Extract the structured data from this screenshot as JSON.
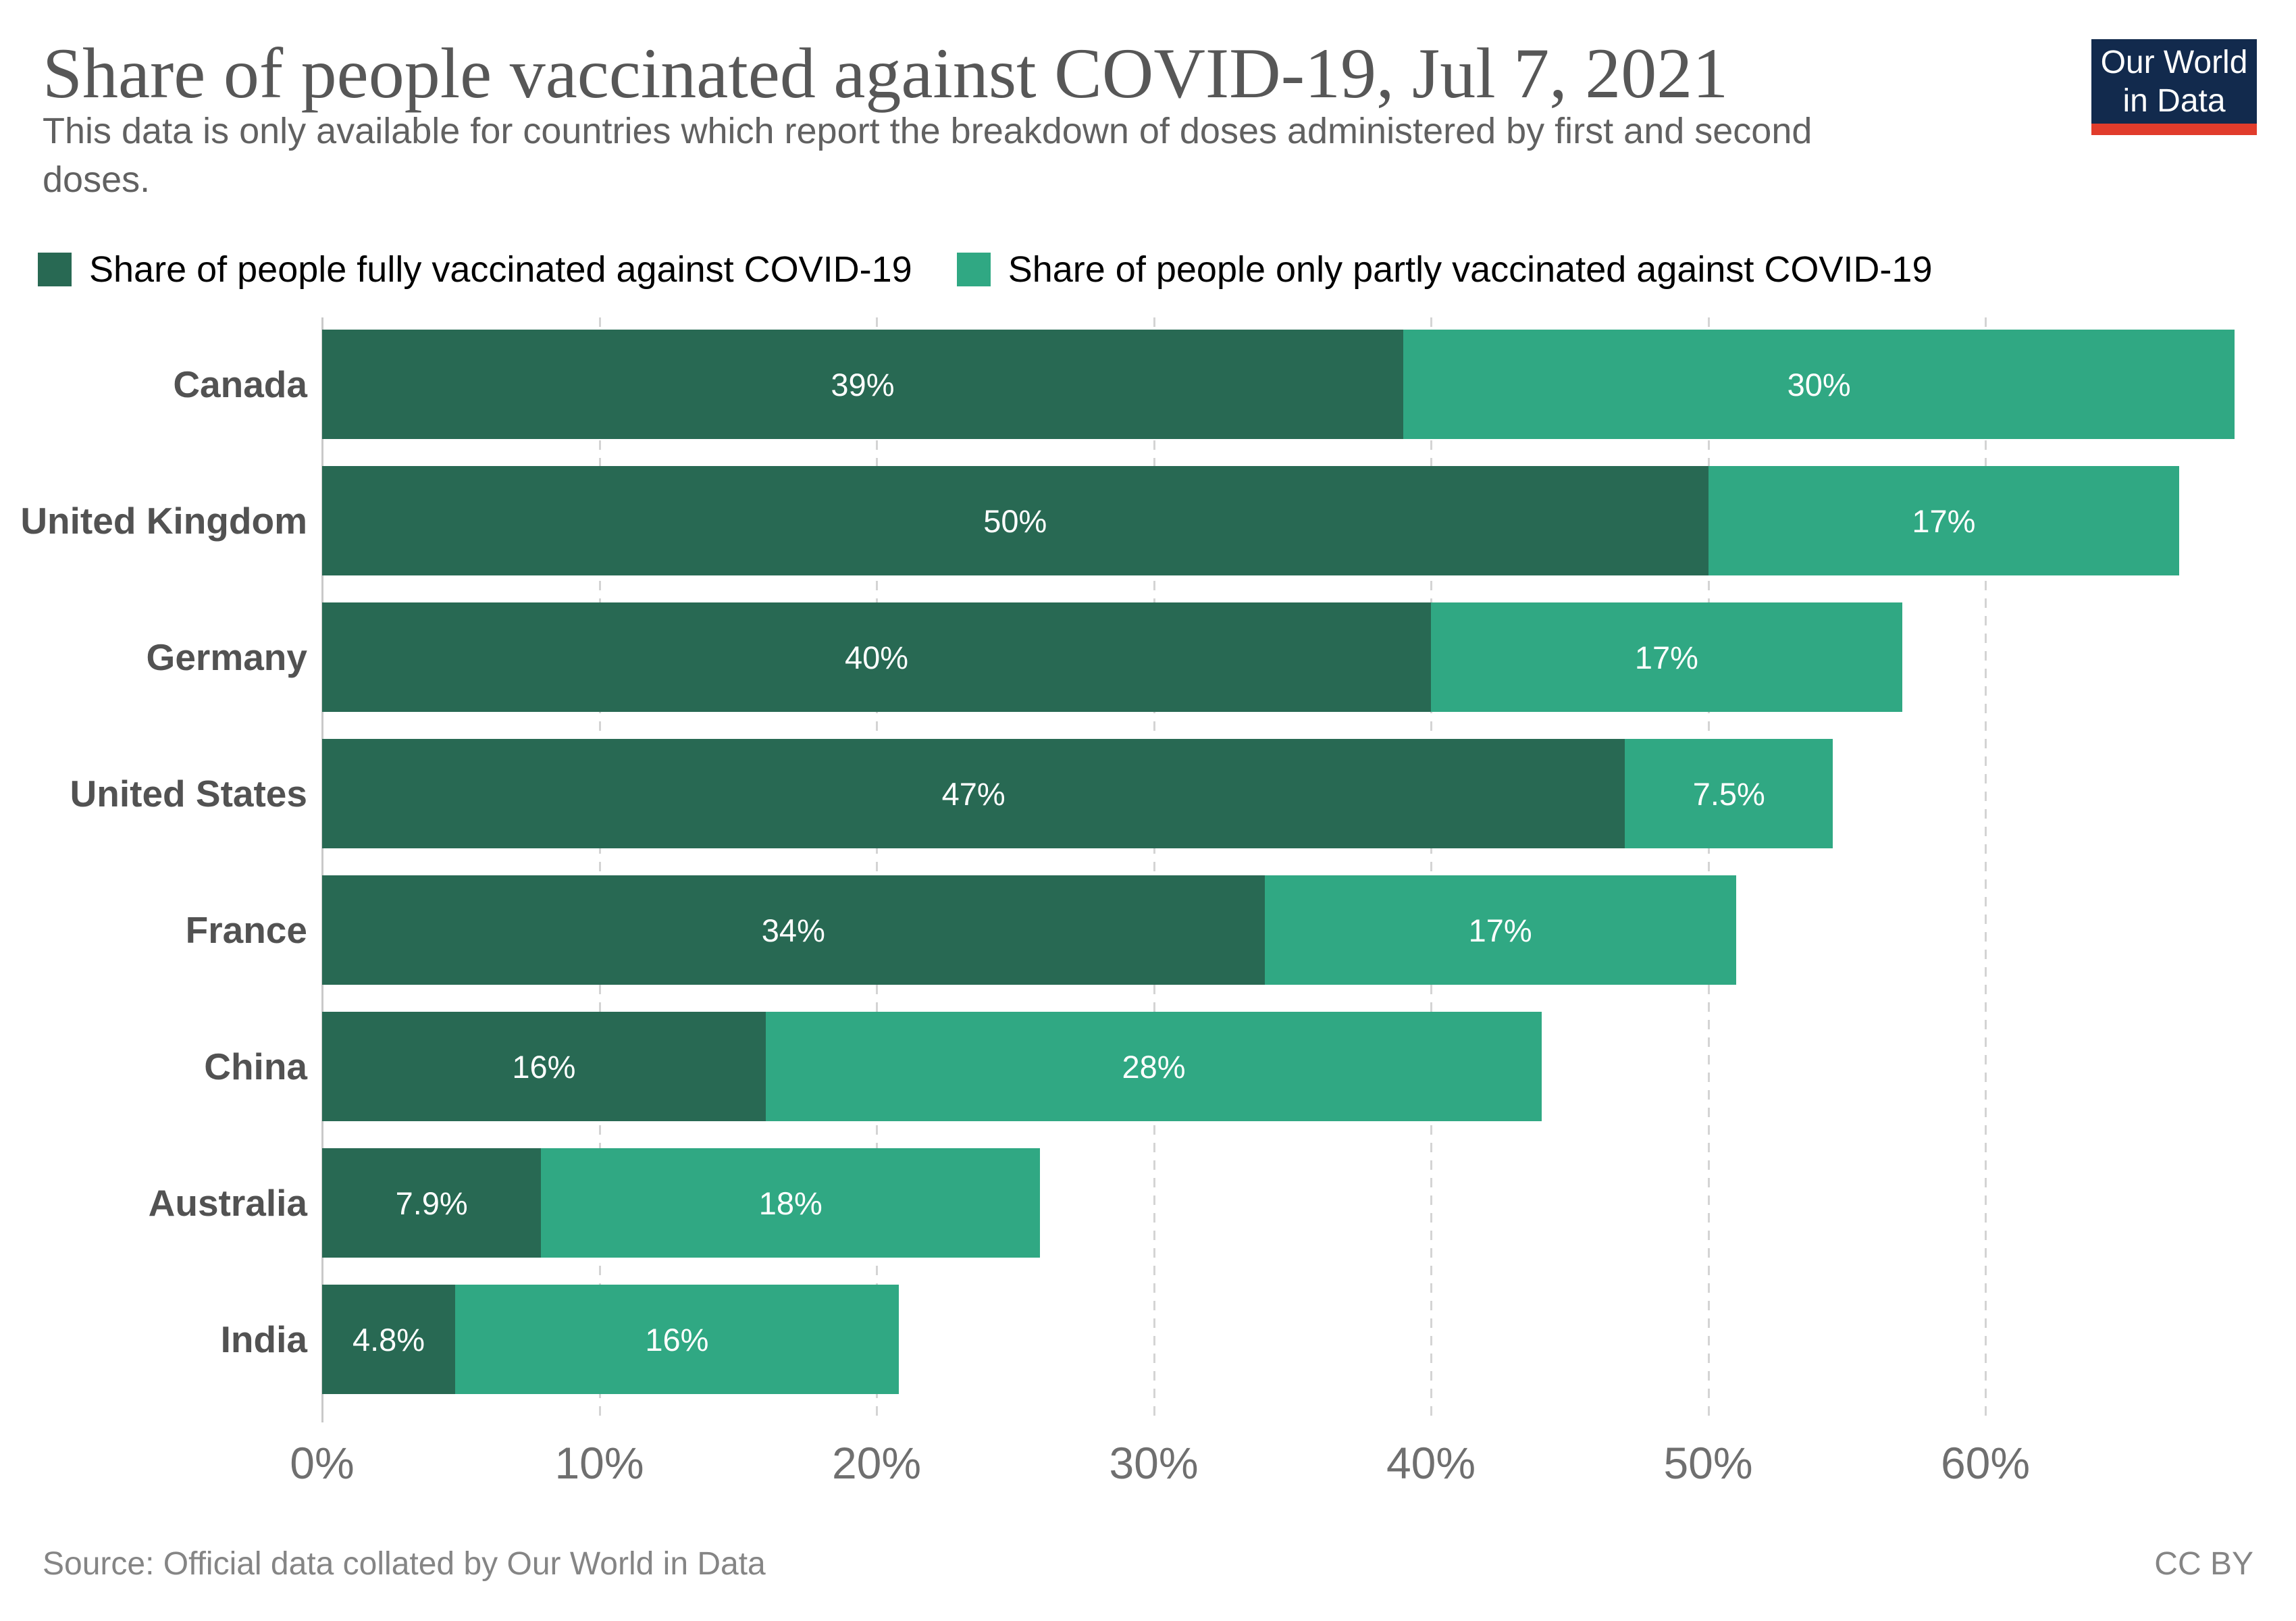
{
  "chart_data": {
    "type": "bar",
    "orientation": "horizontal-stacked",
    "title": "Share of people vaccinated against COVID-19, Jul 7, 2021",
    "subtitle_lines": [
      "This data is only available for countries which report the breakdown of doses administered by first and second",
      "doses."
    ],
    "categories": [
      "Canada",
      "United Kingdom",
      "Germany",
      "United States",
      "France",
      "China",
      "Australia",
      "India"
    ],
    "series": [
      {
        "name": "Share of people fully vaccinated against COVID-19",
        "color": "#286953",
        "values": [
          39,
          50,
          40,
          47,
          34,
          16,
          7.9,
          4.8
        ],
        "labels": [
          "39%",
          "50%",
          "40%",
          "47%",
          "34%",
          "16%",
          "7.9%",
          "4.8%"
        ]
      },
      {
        "name": "Share of people only partly vaccinated against COVID-19",
        "color": "#30a883",
        "values": [
          30,
          17,
          17,
          7.5,
          17,
          28,
          18,
          16
        ],
        "labels": [
          "30%",
          "17%",
          "17%",
          "7.5%",
          "17%",
          "28%",
          "18%",
          "16%"
        ]
      }
    ],
    "x_ticks": [
      "0%",
      "10%",
      "20%",
      "30%",
      "40%",
      "50%",
      "60%"
    ],
    "x_tick_values": [
      0,
      10,
      20,
      30,
      40,
      50,
      60
    ],
    "xlim": [
      0,
      69
    ],
    "grid": "vertical-dashed",
    "legend_position": "top",
    "value_label_color": "#ffffff",
    "gridline_color": "#d4d4d4",
    "axis_line_color": "#c9c9c9"
  },
  "logo": {
    "line1": "Our World",
    "line2": "in Data",
    "bg_color": "#122a4d",
    "stripe_color": "#e13c2c"
  },
  "footer": {
    "source": "Source: Official data collated by Our World in Data",
    "license": "CC BY"
  }
}
